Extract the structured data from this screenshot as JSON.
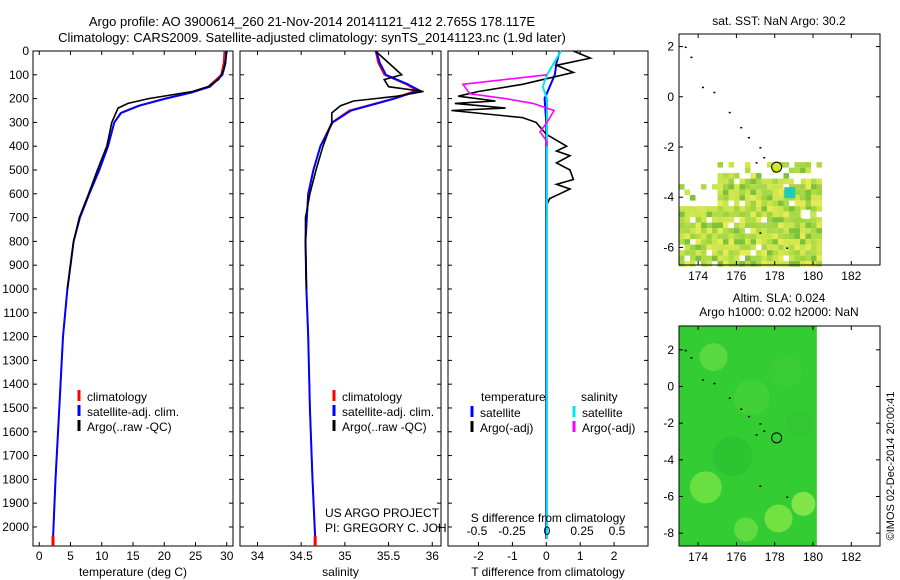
{
  "header": {
    "line1": "Argo profile: AO 3900614_260 21-Nov-2014 20141121_412 2.765S 178.117E",
    "line2": "Climatology: CARS2009. Satellite-adjusted climatology: synTS_20141123.nc (1.9d later)"
  },
  "colors": {
    "climatology": "#ff0000",
    "satellite": "#0000ff",
    "argo": "#000000",
    "salinity_satellite": "#00e5ee",
    "salinity_argo": "#ff00ff",
    "sst_map_fill": "#b8e04a",
    "sla_map_fill": "#33cc33"
  },
  "y_axis": {
    "ylim": [
      2080,
      0
    ],
    "ticks": [
      0,
      100,
      200,
      300,
      400,
      500,
      600,
      700,
      800,
      900,
      1000,
      1100,
      1200,
      1300,
      1400,
      1500,
      1600,
      1700,
      1800,
      1900,
      2000
    ]
  },
  "chart_data": [
    {
      "type": "line",
      "xlabel": "temperature (deg C)",
      "xlim": [
        -1,
        31
      ],
      "xticks": [
        0,
        5,
        10,
        15,
        20,
        25,
        30
      ],
      "legend": {
        "position": "bottom-center",
        "entries": [
          "climatology",
          "satellite-adj. clim.",
          "Argo(..raw -QC)"
        ]
      },
      "series": [
        {
          "name": "climatology",
          "color": "#ff0000",
          "depth": [
            0,
            50,
            100,
            150,
            175,
            200,
            230,
            260,
            300,
            400,
            500,
            600,
            700,
            800,
            1000,
            1200,
            1500,
            1800,
            2050
          ],
          "values": [
            29.6,
            29.5,
            29.1,
            27.0,
            24.0,
            20.0,
            15.8,
            13.0,
            12.0,
            11.0,
            9.6,
            8.0,
            6.5,
            5.5,
            4.5,
            3.8,
            3.2,
            2.6,
            2.2
          ]
        },
        {
          "name": "satellite-adj. clim.",
          "color": "#0000ff",
          "depth": [
            0,
            50,
            100,
            150,
            175,
            200,
            230,
            260,
            300,
            400,
            500,
            600,
            700,
            800,
            1000,
            1200,
            1500,
            1800,
            2050
          ],
          "values": [
            29.9,
            29.8,
            29.3,
            27.3,
            24.3,
            20.2,
            16.0,
            13.1,
            12.0,
            11.0,
            9.6,
            8.0,
            6.5,
            5.5,
            4.5,
            3.8,
            3.2,
            2.6,
            2.2
          ]
        },
        {
          "name": "Argo(..raw -QC)",
          "color": "#000000",
          "depth": [
            0,
            40,
            80,
            120,
            150,
            170,
            200,
            220,
            240,
            270,
            300,
            400,
            500,
            600,
            700,
            800,
            1000
          ],
          "values": [
            30.0,
            29.8,
            29.5,
            28.7,
            27.0,
            24.5,
            17.5,
            14.2,
            12.6,
            12.1,
            11.6,
            10.8,
            9.3,
            7.9,
            6.4,
            5.5,
            4.5
          ]
        }
      ]
    },
    {
      "type": "line",
      "xlabel": "salinity",
      "xlim": [
        33.8,
        36.1
      ],
      "xticks": [
        34,
        34.5,
        35,
        35.5,
        36
      ],
      "legend": {
        "position": "bottom-center",
        "entries": [
          "climatology",
          "satellite-adj. clim.",
          "Argo(..raw -QC)"
        ]
      },
      "annotations": [
        "US ARGO PROJECT",
        "PI: GREGORY C. JOHNSON"
      ],
      "series": [
        {
          "name": "climatology",
          "color": "#ff0000",
          "depth": [
            0,
            50,
            100,
            140,
            165,
            200,
            250,
            300,
            400,
            500,
            600,
            800,
            1000,
            1200,
            1500,
            1800,
            2050
          ],
          "values": [
            35.35,
            35.38,
            35.45,
            35.7,
            35.82,
            35.55,
            35.05,
            34.85,
            34.72,
            34.64,
            34.58,
            34.55,
            34.56,
            34.58,
            34.6,
            34.63,
            34.66
          ]
        },
        {
          "name": "satellite-adj. clim.",
          "color": "#0000ff",
          "depth": [
            0,
            50,
            100,
            140,
            165,
            200,
            250,
            300,
            400,
            500,
            600,
            800,
            1000,
            1200,
            1500,
            1800,
            2050
          ],
          "values": [
            35.36,
            35.4,
            35.47,
            35.72,
            35.85,
            35.57,
            35.07,
            34.86,
            34.72,
            34.64,
            34.58,
            34.55,
            34.56,
            34.58,
            34.6,
            34.63,
            34.66
          ]
        },
        {
          "name": "Argo(..raw -QC)",
          "color": "#000000",
          "depth": [
            0,
            50,
            100,
            120,
            150,
            170,
            190,
            210,
            230,
            260,
            300,
            400,
            500,
            600,
            700,
            800,
            1000
          ],
          "values": [
            35.35,
            35.5,
            35.65,
            35.45,
            35.5,
            35.9,
            35.6,
            35.1,
            34.95,
            34.85,
            34.85,
            34.75,
            34.67,
            34.6,
            34.55,
            34.55,
            34.56
          ]
        }
      ]
    },
    {
      "type": "line",
      "xlabel": "T difference from climatology",
      "xlim": [
        -2.9,
        3.0
      ],
      "xticks": [
        -2,
        -1,
        0,
        1,
        2
      ],
      "top_axis": {
        "label": "S difference from climatology",
        "ticks": [
          "-0.5",
          "-0.25",
          "0",
          "0.25",
          "0.5"
        ]
      },
      "legend": {
        "position": "bottom",
        "temperature_title": "temperature",
        "salinity_title": "salinity",
        "entries": [
          "satellite",
          "Argo(-adj)",
          "satellite",
          "Argo(-adj)"
        ]
      },
      "series": [
        {
          "name": "satellite",
          "group": "temperature",
          "color": "#0000ff",
          "depth": [
            0,
            50,
            100,
            150,
            200,
            300,
            500,
            800,
            1200,
            2050
          ],
          "values": [
            0.4,
            0.3,
            0.25,
            0.1,
            -0.05,
            0,
            0,
            0,
            0,
            0
          ]
        },
        {
          "name": "Argo(-adj)",
          "group": "temperature",
          "color": "#000000",
          "depth": [
            0,
            30,
            60,
            90,
            110,
            140,
            170,
            190,
            210,
            220,
            240,
            250,
            280,
            300,
            350,
            400,
            420,
            440,
            470,
            500,
            540,
            560,
            580,
            600,
            620,
            650,
            700
          ],
          "values": [
            0.8,
            1.3,
            0.3,
            0.8,
            0.2,
            -0.7,
            -2.0,
            -2.6,
            -1.5,
            -2.7,
            -1.2,
            -2.8,
            -0.7,
            -0.3,
            0,
            0.6,
            0.3,
            0.7,
            0.3,
            0.7,
            0.8,
            0.3,
            0.7,
            0.4,
            0.1,
            0,
            0
          ]
        },
        {
          "name": "satellite",
          "group": "salinity",
          "color": "#00e5ee",
          "depth": [
            0,
            50,
            100,
            150,
            200,
            300,
            500,
            800,
            1200,
            2050
          ],
          "values": [
            0.1,
            0.05,
            0.0,
            -0.03,
            0,
            0,
            0,
            0,
            0,
            0
          ]
        },
        {
          "name": "Argo(-adj)",
          "group": "salinity",
          "color": "#ff00ff",
          "depth": [
            100,
            140,
            180,
            200,
            220,
            250,
            300,
            340,
            380,
            400
          ],
          "values": [
            0,
            -0.6,
            -0.55,
            -0.3,
            -0.1,
            0.05,
            0,
            -0.05,
            0,
            0
          ]
        }
      ]
    },
    {
      "type": "heatmap",
      "title": "sat. SST: NaN Argo: 30.2",
      "xlim": [
        173,
        183.5
      ],
      "ylim": [
        -6.7,
        2.5
      ],
      "xticks": [
        174,
        176,
        178,
        180,
        182
      ],
      "yticks": [
        2,
        0,
        -2,
        -4,
        -6
      ],
      "argo_position": {
        "lon": 178.1,
        "lat": -2.8
      }
    },
    {
      "type": "heatmap",
      "title_line1": "Altim. SLA: 0.024",
      "title_line2": "Argo h1000: 0.02 h2000: NaN",
      "xlim": [
        173,
        183.5
      ],
      "ylim": [
        -8.7,
        3.3
      ],
      "xticks": [
        174,
        176,
        178,
        180,
        182
      ],
      "yticks": [
        2,
        0,
        -2,
        -4,
        -6,
        -8
      ],
      "argo_position": {
        "lon": 178.1,
        "lat": -2.8
      }
    }
  ],
  "footer": {
    "credit": "©IMOS 02-Dec-2014 20:00:41"
  }
}
